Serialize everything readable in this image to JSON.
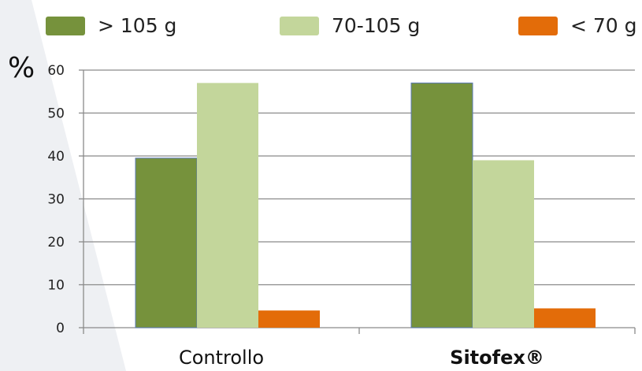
{
  "chart_data": {
    "type": "bar",
    "categories": [
      "Controllo",
      "Sitofex®"
    ],
    "category_bold": [
      false,
      true
    ],
    "series": [
      {
        "name": "> 105 g",
        "values": [
          39.5,
          57.0
        ],
        "color": "#76923c"
      },
      {
        "name": "70-105 g",
        "values": [
          57.0,
          39.0
        ],
        "color": "#c3d69b"
      },
      {
        "name": "< 70 g",
        "values": [
          4.0,
          4.5
        ],
        "color": "#e36c09"
      }
    ],
    "ylabel": "%",
    "ylim": [
      0,
      60
    ],
    "yticks": [
      0,
      10,
      20,
      30,
      40,
      50,
      60
    ],
    "grid": true,
    "legend_position": "top"
  },
  "colors": {
    "background_shape": "#eef0f3",
    "gridline": "#8a8a8a",
    "axis": "#8a8a8a",
    "text": "#111111"
  }
}
